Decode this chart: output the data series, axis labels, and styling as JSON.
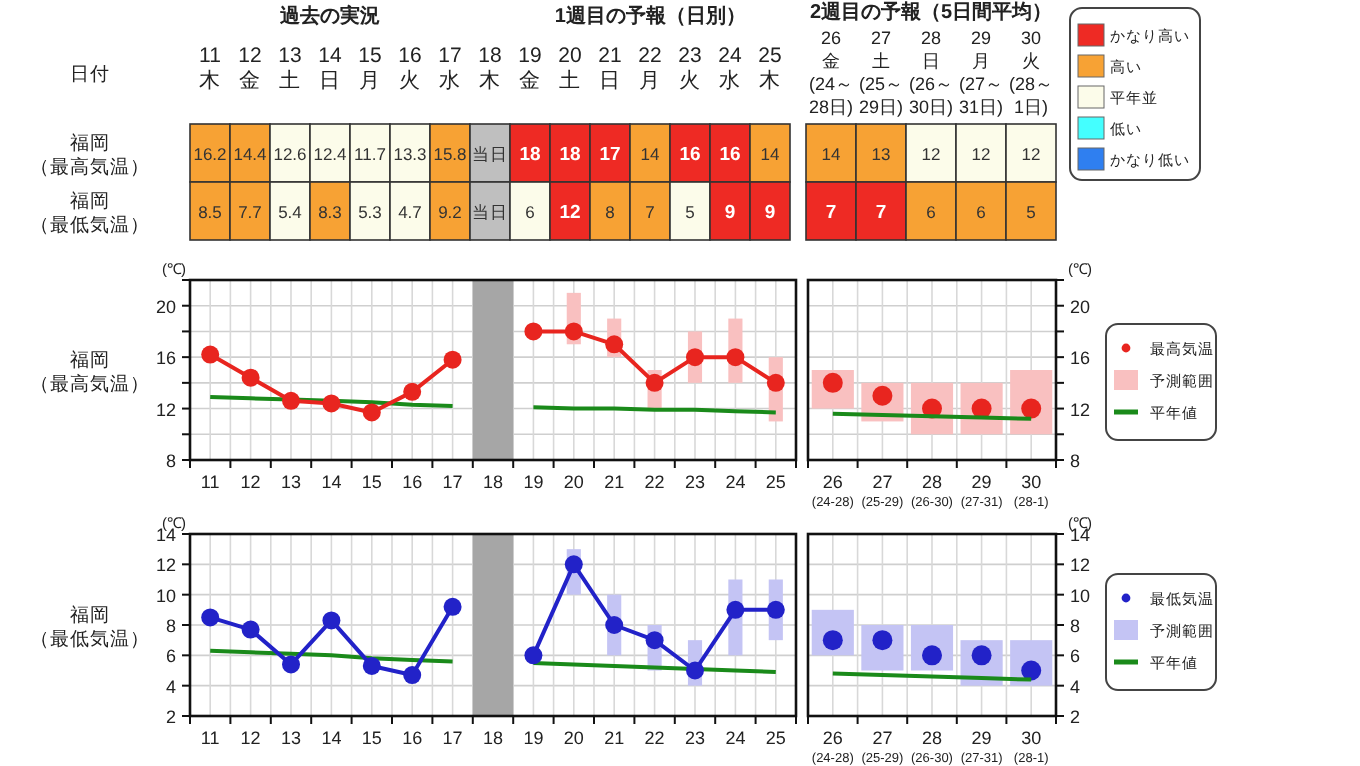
{
  "chart_data": [
    {
      "type": "heatmap",
      "xlabel": "日付",
      "annotations": [
        "過去の実況",
        "1週目の予報（日別）"
      ],
      "categories": [
        "11\n木",
        "12\n金",
        "13\n土",
        "14\n日",
        "15\n月",
        "16\n火",
        "17\n水",
        "18\n木",
        "19\n金",
        "20\n土",
        "21\n日",
        "22\n月",
        "23\n火",
        "24\n水",
        "25\n木"
      ],
      "y_categories": [
        "福岡（最高気温）",
        "福岡（最低気温）"
      ],
      "cells": [
        [
          16.2,
          14.4,
          12.6,
          12.4,
          11.7,
          13.3,
          15.8,
          null,
          18,
          18,
          17,
          14,
          16,
          16,
          14
        ],
        [
          8.5,
          7.7,
          5.4,
          8.3,
          5.3,
          4.7,
          9.2,
          null,
          6,
          12,
          8,
          7,
          5,
          9,
          9
        ]
      ],
      "cell_labels": [
        [
          "16.2",
          "14.4",
          "12.6",
          "12.4",
          "11.7",
          "13.3",
          "15.8",
          "当日",
          "18",
          "18",
          "17",
          "14",
          "16",
          "16",
          "14"
        ],
        [
          "8.5",
          "7.7",
          "5.4",
          "8.3",
          "5.3",
          "4.7",
          "9.2",
          "当日",
          "6",
          "12",
          "8",
          "7",
          "5",
          "9",
          "9"
        ]
      ],
      "colors": [
        [
          "#f7a234",
          "#f7a234",
          "#fcfcea",
          "#fcfcea",
          "#fcfcea",
          "#fcfcea",
          "#f7a234",
          "#bfbfbf",
          "#ee2a24",
          "#ee2a24",
          "#ee2a24",
          "#f7a234",
          "#ee2a24",
          "#ee2a24",
          "#f7a234"
        ],
        [
          "#f7a234",
          "#f7a234",
          "#fcfcea",
          "#f7a234",
          "#fcfcea",
          "#fcfcea",
          "#f7a234",
          "#bfbfbf",
          "#fcfcea",
          "#ee2a24",
          "#f7a234",
          "#f7a234",
          "#fcfcea",
          "#ee2a24",
          "#ee2a24"
        ]
      ]
    },
    {
      "type": "heatmap",
      "title": "2週目の予報（5日間平均）",
      "data_labels": true,
      "tick_labels": "x",
      "y_categories": [
        null,
        null
      ],
      "categories": [
        "26\n金\n(24～\n28日)",
        "27\n土\n(25～\n29日)",
        "28\n日\n(26～\n30日)",
        "29\n月\n(27～\n31日)",
        "30\n火\n(28～\n1日)"
      ],
      "cells": [
        [
          14,
          13,
          12,
          12,
          12
        ],
        [
          7,
          7,
          6,
          6,
          5
        ]
      ],
      "colors": [
        [
          "#f7a234",
          "#f7a234",
          "#fcfcea",
          "#fcfcea",
          "#fcfcea"
        ],
        [
          "#ee2a24",
          "#ee2a24",
          "#f7a234",
          "#f7a234",
          "#f7a234"
        ]
      ]
    },
    {
      "type": "line",
      "ylabel": "福岡（最高気温）",
      "annotations": [
        "(℃)"
      ],
      "grid": true,
      "categories": [
        "11",
        "12",
        "13",
        "14",
        "15",
        "16",
        "17",
        "18",
        "19",
        "20",
        "21",
        "22",
        "23",
        "24",
        "25"
      ],
      "ylim": [
        8,
        22
      ],
      "yticks": [
        8,
        {
          "value": 10,
          "label": null
        },
        12,
        {
          "value": 14,
          "label": null
        },
        16,
        {
          "value": 18,
          "label": null
        },
        20,
        {
          "value": 22,
          "label": null
        }
      ],
      "bands": [
        {
          "axis": "x",
          "from": "18",
          "to": "18",
          "color": "#a6a6a6"
        }
      ],
      "series": [
        {
          "type": "bar",
          "color": "#f9c0c0",
          "base": [
            null,
            null,
            null,
            null,
            null,
            null,
            null,
            null,
            null,
            17,
            16,
            12,
            14,
            14,
            11
          ],
          "values": [
            null,
            null,
            null,
            null,
            null,
            null,
            null,
            null,
            null,
            4,
            3,
            3,
            4,
            5,
            5
          ]
        },
        {
          "type": "line",
          "color": "#1a8a1a",
          "marker": "none",
          "values": [
            12.9,
            12.8,
            12.7,
            12.6,
            12.5,
            12.3,
            12.2,
            null,
            12.1,
            12.0,
            12.0,
            11.9,
            11.9,
            11.8,
            11.7
          ]
        },
        {
          "type": "line",
          "color": "#e8251f",
          "marker": "circle",
          "values": [
            16.2,
            14.4,
            12.6,
            12.4,
            11.7,
            13.3,
            15.8,
            null,
            18,
            18,
            17,
            14,
            16,
            16,
            14
          ]
        }
      ]
    },
    {
      "type": "line",
      "annotations": [
        "(℃)"
      ],
      "grid": true,
      "legend": "right",
      "categories": [
        "26\n(24-28)",
        "27\n(25-29)",
        "28\n(26-30)",
        "29\n(27-31)",
        "30\n(28-1)"
      ],
      "ylim": [
        8,
        22
      ],
      "yticks": [
        8,
        {
          "value": 10,
          "label": null
        },
        12,
        {
          "value": 14,
          "label": null
        },
        16,
        {
          "value": 18,
          "label": null
        },
        20,
        {
          "value": 22,
          "label": null
        }
      ],
      "series": [
        {
          "type": "scatter",
          "name": "最高気温",
          "color": "#e8251f",
          "marker": "circle",
          "values": [
            14,
            13,
            12,
            12,
            12
          ]
        },
        {
          "type": "bar",
          "name": "予測範囲",
          "color": "#f9c0c0",
          "base": [
            12,
            11,
            10,
            10,
            10
          ],
          "values": [
            3,
            3,
            4,
            4,
            5
          ]
        },
        {
          "type": "line",
          "name": "平年値",
          "color": "#1a8a1a",
          "marker": "none",
          "values": [
            11.6,
            11.5,
            11.4,
            11.3,
            11.2
          ]
        }
      ]
    },
    {
      "type": "line",
      "ylabel": "福岡（最低気温）",
      "annotations": [
        "(℃)"
      ],
      "grid": true,
      "categories": [
        "11",
        "12",
        "13",
        "14",
        "15",
        "16",
        "17",
        "18",
        "19",
        "20",
        "21",
        "22",
        "23",
        "24",
        "25"
      ],
      "ylim": [
        2,
        14
      ],
      "yticks": [
        2,
        4,
        6,
        8,
        10,
        12,
        14
      ],
      "bands": [
        {
          "axis": "x",
          "from": "18",
          "to": "18",
          "color": "#a6a6a6"
        }
      ],
      "series": [
        {
          "type": "bar",
          "color": "#c4c4f4",
          "base": [
            null,
            null,
            null,
            null,
            null,
            null,
            null,
            null,
            null,
            10,
            6,
            5,
            4,
            6,
            7
          ],
          "values": [
            null,
            null,
            null,
            null,
            null,
            null,
            null,
            null,
            null,
            3,
            4,
            3,
            3,
            5,
            4
          ]
        },
        {
          "type": "line",
          "color": "#1a8a1a",
          "marker": "none",
          "values": [
            6.3,
            6.2,
            6.1,
            6.0,
            5.8,
            5.7,
            5.6,
            null,
            5.5,
            5.4,
            5.3,
            5.2,
            5.1,
            5.0,
            4.9
          ]
        },
        {
          "type": "line",
          "color": "#2222c8",
          "marker": "circle",
          "values": [
            8.5,
            7.7,
            5.4,
            8.3,
            5.3,
            4.7,
            9.2,
            null,
            6,
            12,
            8,
            7,
            5,
            9,
            9
          ]
        }
      ]
    },
    {
      "type": "line",
      "annotations": [
        "(℃)"
      ],
      "grid": true,
      "legend": "right",
      "categories": [
        "26\n(24-28)",
        "27\n(25-29)",
        "28\n(26-30)",
        "29\n(27-31)",
        "30\n(28-1)"
      ],
      "ylim": [
        2,
        14
      ],
      "yticks": [
        2,
        4,
        6,
        8,
        10,
        12,
        14
      ],
      "series": [
        {
          "type": "scatter",
          "name": "最低気温",
          "color": "#2222c8",
          "marker": "circle",
          "values": [
            7,
            7,
            6,
            6,
            5
          ]
        },
        {
          "type": "bar",
          "name": "予測範囲",
          "color": "#c4c4f4",
          "base": [
            6,
            5,
            5,
            4,
            4
          ],
          "values": [
            3,
            3,
            3,
            3,
            3
          ]
        },
        {
          "type": "line",
          "name": "平年値",
          "color": "#1a8a1a",
          "marker": "none",
          "values": [
            4.8,
            4.7,
            4.6,
            4.5,
            4.4
          ]
        }
      ]
    },
    {
      "type": "other",
      "categories": [
        "かなり高い",
        "高い",
        "平年並",
        "低い",
        "かなり低い"
      ],
      "colors": [
        "#ee2a24",
        "#f7a234",
        "#fcfcea",
        "#44ffff",
        "#2f7ff0"
      ]
    }
  ]
}
